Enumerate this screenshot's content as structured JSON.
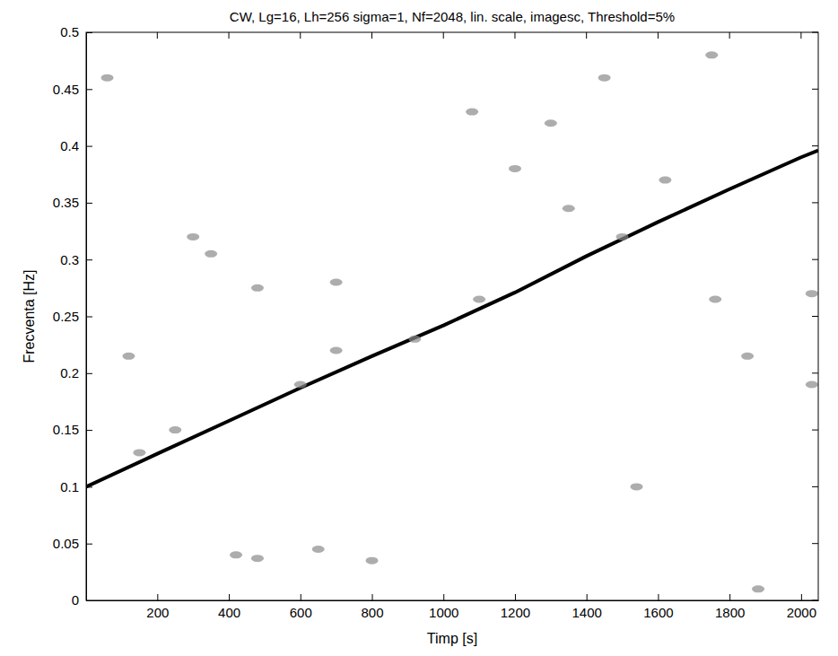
{
  "chart_data": {
    "type": "line",
    "title": "CW, Lg=16, Lh=256 sigma=1, Nf=2048, lin. scale, imagesc, Threshold=5%",
    "x_label": "Timp [s]",
    "y_label": "Frecventa [Hz]",
    "xlim": [
      1,
      2048
    ],
    "ylim": [
      0,
      0.5
    ],
    "xticks": [
      200,
      400,
      600,
      800,
      1000,
      1200,
      1400,
      1600,
      1800,
      2000
    ],
    "yticks": [
      0,
      0.05,
      0.1,
      0.15,
      0.2,
      0.25,
      0.3,
      0.35,
      0.4,
      0.45,
      0.5
    ],
    "grid": false,
    "series": [
      {
        "type": "line",
        "color": "#000000",
        "line_style": "solid",
        "x": [
          1,
          200,
          400,
          600,
          800,
          1000,
          1200,
          1400,
          1600,
          1800,
          2000,
          2048
        ],
        "values": [
          0.1,
          0.129,
          0.158,
          0.187,
          0.215,
          0.242,
          0.271,
          0.303,
          0.333,
          0.362,
          0.39,
          0.396
        ]
      },
      {
        "type": "scatter",
        "color": "#8a8a8a",
        "marker": "circle",
        "x": [
          420,
          480,
          650,
          700,
          800,
          120,
          300,
          700,
          480,
          1300,
          1350,
          1850,
          1200,
          1750,
          2030,
          2030,
          150,
          600,
          920,
          1100,
          1500,
          1760,
          60,
          350,
          1450,
          1880,
          250,
          1620,
          1080,
          1540
        ],
        "values": [
          0.04,
          0.037,
          0.045,
          0.28,
          0.035,
          0.215,
          0.32,
          0.22,
          0.275,
          0.42,
          0.345,
          0.215,
          0.38,
          0.48,
          0.19,
          0.27,
          0.13,
          0.19,
          0.23,
          0.265,
          0.32,
          0.265,
          0.46,
          0.305,
          0.46,
          0.01,
          0.15,
          0.37,
          0.43,
          0.1
        ]
      }
    ]
  }
}
